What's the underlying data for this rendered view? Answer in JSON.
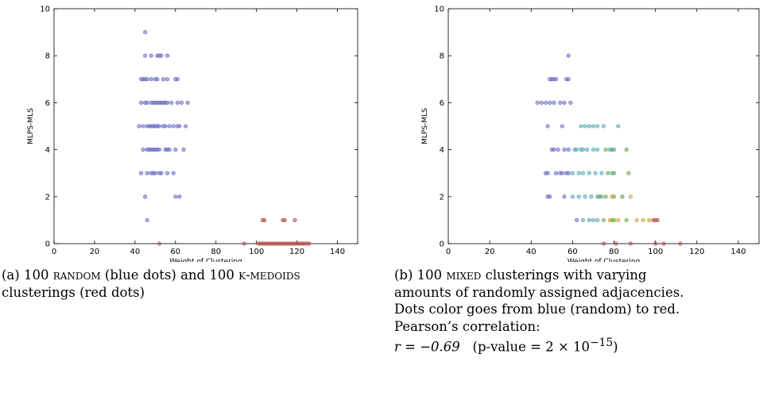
{
  "chart_data": [
    {
      "type": "scatter",
      "xlabel": "Weight of Clustering",
      "ylabel": "MLPS-MLS",
      "xlim": [
        0,
        150
      ],
      "ylim": [
        0,
        10
      ],
      "xticks": [
        0,
        20,
        40,
        60,
        80,
        100,
        120,
        140
      ],
      "yticks": [
        0,
        2,
        4,
        6,
        8,
        10
      ],
      "grid": false,
      "series": [
        {
          "color": "#6e6ec6",
          "points": [
            [
              45,
              9
            ],
            [
              45,
              8
            ],
            [
              48,
              8
            ],
            [
              51,
              8
            ],
            [
              52,
              8
            ],
            [
              53,
              8
            ],
            [
              56,
              8
            ],
            [
              43,
              7
            ],
            [
              44,
              7
            ],
            [
              45,
              7
            ],
            [
              46,
              7
            ],
            [
              48,
              7
            ],
            [
              50,
              7
            ],
            [
              51,
              7
            ],
            [
              54,
              7
            ],
            [
              56,
              7
            ],
            [
              60,
              7
            ],
            [
              61,
              7
            ],
            [
              43,
              6
            ],
            [
              45,
              6
            ],
            [
              46,
              6
            ],
            [
              48,
              6
            ],
            [
              49,
              6
            ],
            [
              50,
              6
            ],
            [
              51,
              6
            ],
            [
              52,
              6
            ],
            [
              53,
              6
            ],
            [
              54,
              6
            ],
            [
              55,
              6
            ],
            [
              56,
              6
            ],
            [
              58,
              6
            ],
            [
              61,
              6
            ],
            [
              63,
              6
            ],
            [
              66,
              6
            ],
            [
              42,
              5
            ],
            [
              44,
              5
            ],
            [
              46,
              5
            ],
            [
              47,
              5
            ],
            [
              48,
              5
            ],
            [
              49,
              5
            ],
            [
              50,
              5
            ],
            [
              51,
              5
            ],
            [
              52,
              5
            ],
            [
              54,
              5
            ],
            [
              55,
              5
            ],
            [
              57,
              5
            ],
            [
              59,
              5
            ],
            [
              61,
              5
            ],
            [
              62,
              5
            ],
            [
              65,
              5
            ],
            [
              44,
              4
            ],
            [
              46,
              4
            ],
            [
              47,
              4
            ],
            [
              48,
              4
            ],
            [
              49,
              4
            ],
            [
              50,
              4
            ],
            [
              51,
              4
            ],
            [
              52,
              4
            ],
            [
              55,
              4
            ],
            [
              56,
              4
            ],
            [
              57,
              4
            ],
            [
              60,
              4
            ],
            [
              64,
              4
            ],
            [
              43,
              3
            ],
            [
              46,
              3
            ],
            [
              48,
              3
            ],
            [
              49,
              3
            ],
            [
              50,
              3
            ],
            [
              52,
              3
            ],
            [
              53,
              3
            ],
            [
              56,
              3
            ],
            [
              59,
              3
            ],
            [
              45,
              2
            ],
            [
              60,
              2
            ],
            [
              62,
              2
            ],
            [
              46,
              1
            ]
          ]
        },
        {
          "color": "#b85050",
          "points": [
            [
              103,
              1
            ],
            [
              104,
              1
            ],
            [
              113,
              1
            ],
            [
              114,
              1
            ],
            [
              119,
              1
            ],
            [
              101,
              0
            ],
            [
              102,
              0
            ],
            [
              103,
              0
            ],
            [
              104,
              0
            ],
            [
              105,
              0
            ],
            [
              106,
              0
            ],
            [
              107,
              0
            ],
            [
              108,
              0
            ],
            [
              109,
              0
            ],
            [
              110,
              0
            ],
            [
              111,
              0
            ],
            [
              112,
              0
            ],
            [
              113,
              0
            ],
            [
              114,
              0
            ],
            [
              115,
              0
            ],
            [
              116,
              0
            ],
            [
              117,
              0
            ],
            [
              118,
              0
            ],
            [
              119,
              0
            ],
            [
              120,
              0
            ],
            [
              121,
              0
            ],
            [
              122,
              0
            ],
            [
              123,
              0
            ],
            [
              124,
              0
            ],
            [
              125,
              0
            ],
            [
              126,
              0
            ],
            [
              52,
              0
            ],
            [
              94,
              0
            ]
          ]
        }
      ]
    },
    {
      "type": "scatter",
      "xlabel": "Weight of Clustering",
      "ylabel": "MLPS-MLS",
      "xlim": [
        0,
        150
      ],
      "ylim": [
        0,
        10
      ],
      "xticks": [
        0,
        20,
        40,
        60,
        80,
        100,
        120,
        140
      ],
      "yticks": [
        0,
        2,
        4,
        6,
        8,
        10
      ],
      "grid": false,
      "series": [
        {
          "color": "#6e6ec6",
          "points": [
            [
              58,
              8
            ],
            [
              49,
              7
            ],
            [
              50,
              7
            ],
            [
              51,
              7
            ],
            [
              52,
              7
            ],
            [
              57,
              7
            ],
            [
              58,
              7
            ],
            [
              43,
              6
            ],
            [
              45,
              6
            ],
            [
              47,
              6
            ],
            [
              49,
              6
            ],
            [
              51,
              6
            ],
            [
              54,
              6
            ],
            [
              56,
              6
            ],
            [
              59,
              6
            ],
            [
              48,
              5
            ],
            [
              55,
              5
            ],
            [
              50,
              4
            ],
            [
              51,
              4
            ],
            [
              53,
              4
            ],
            [
              56,
              4
            ],
            [
              58,
              4
            ],
            [
              47,
              3
            ],
            [
              48,
              3
            ],
            [
              52,
              3
            ],
            [
              54,
              3
            ],
            [
              55,
              3
            ],
            [
              57,
              3
            ],
            [
              58,
              3
            ],
            [
              48,
              2
            ],
            [
              49,
              2
            ],
            [
              56,
              2
            ],
            [
              62,
              1
            ]
          ]
        },
        {
          "color": "#5aa8b4",
          "points": [
            [
              64,
              5
            ],
            [
              66,
              5
            ],
            [
              68,
              5
            ],
            [
              70,
              5
            ],
            [
              72,
              5
            ],
            [
              75,
              5
            ],
            [
              82,
              5
            ],
            [
              61,
              4
            ],
            [
              62,
              4
            ],
            [
              64,
              4
            ],
            [
              65,
              4
            ],
            [
              67,
              4
            ],
            [
              70,
              4
            ],
            [
              72,
              4
            ],
            [
              78,
              4
            ],
            [
              80,
              4
            ],
            [
              60,
              3
            ],
            [
              63,
              3
            ],
            [
              65,
              3
            ],
            [
              68,
              3
            ],
            [
              71,
              3
            ],
            [
              74,
              3
            ],
            [
              79,
              3
            ],
            [
              60,
              2
            ],
            [
              63,
              2
            ],
            [
              66,
              2
            ],
            [
              69,
              2
            ],
            [
              72,
              2
            ],
            [
              74,
              2
            ],
            [
              65,
              1
            ],
            [
              68,
              1
            ],
            [
              70,
              1
            ],
            [
              72,
              1
            ]
          ]
        },
        {
          "color": "#6aaa4a",
          "points": [
            [
              76,
              4
            ],
            [
              79,
              4
            ],
            [
              86,
              4
            ],
            [
              77,
              3
            ],
            [
              80,
              3
            ],
            [
              87,
              3
            ],
            [
              73,
              2
            ],
            [
              76,
              2
            ],
            [
              80,
              2
            ],
            [
              84,
              2
            ],
            [
              75,
              1
            ],
            [
              79,
              1
            ],
            [
              80,
              1
            ],
            [
              86,
              1
            ]
          ]
        },
        {
          "color": "#c8a040",
          "points": [
            [
              79,
              2
            ],
            [
              88,
              2
            ],
            [
              78,
              1
            ],
            [
              82,
              1
            ],
            [
              91,
              1
            ],
            [
              94,
              1
            ],
            [
              97,
              1
            ]
          ]
        },
        {
          "color": "#b85050",
          "points": [
            [
              99,
              1
            ],
            [
              100,
              1
            ],
            [
              101,
              1
            ],
            [
              75,
              0
            ],
            [
              81,
              0
            ],
            [
              88,
              0
            ],
            [
              100,
              0
            ],
            [
              104,
              0
            ],
            [
              112,
              0
            ]
          ]
        }
      ]
    }
  ],
  "captions": {
    "a": {
      "prefix": "(a) 100 ",
      "sc1": "random",
      "mid": " (blue dots) and 100 ",
      "sc2": "k-medoids",
      "suffix": " clusterings (red dots)"
    },
    "b": {
      "line1_prefix": "(b) 100 ",
      "line1_sc": "mixed",
      "line1_suffix": " clusterings with varying",
      "line2": "amounts of randomly assigned adjacencies.",
      "line3": "Dots color goes from blue (random) to red.",
      "line4": "Pearson’s correlation:",
      "line5_r": "r = −0.69",
      "line5_p": "(p-value = 2 × 10",
      "line5_exp": "−15",
      "line5_close": ")"
    }
  }
}
